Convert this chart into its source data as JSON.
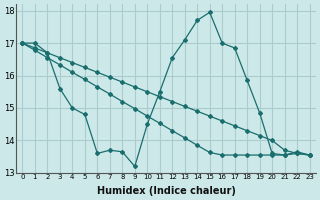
{
  "xlabel": "Humidex (Indice chaleur)",
  "ylabel": "",
  "bg_color": "#cce8e8",
  "grid_color": "#aacccc",
  "line_color": "#1a6e6e",
  "xlim": [
    -0.5,
    23.5
  ],
  "ylim": [
    13,
    18.2
  ],
  "yticks": [
    13,
    14,
    15,
    16,
    17,
    18
  ],
  "xticks": [
    0,
    1,
    2,
    3,
    4,
    5,
    6,
    7,
    8,
    9,
    10,
    11,
    12,
    13,
    14,
    15,
    16,
    17,
    18,
    19,
    20,
    21,
    22,
    23
  ],
  "line1_x": [
    0,
    1,
    2,
    3,
    4,
    5,
    6,
    7,
    8,
    9,
    10,
    11,
    12,
    13,
    14,
    15,
    16,
    17,
    18,
    19,
    20,
    21,
    22,
    23
  ],
  "line1_y": [
    17.0,
    17.0,
    16.7,
    15.6,
    15.0,
    14.8,
    13.6,
    13.7,
    13.65,
    13.2,
    14.5,
    15.5,
    16.55,
    17.1,
    17.7,
    17.95,
    17.0,
    16.85,
    15.85,
    14.85,
    13.6,
    13.55,
    13.65,
    13.55
  ],
  "line2_x": [
    0,
    1,
    2,
    3,
    4,
    5,
    6,
    7,
    8,
    9,
    10,
    11,
    12,
    13,
    14,
    15,
    16,
    17,
    18,
    19,
    20,
    21,
    22,
    23
  ],
  "line2_y": [
    17.0,
    16.85,
    16.7,
    16.55,
    16.4,
    16.25,
    16.1,
    15.95,
    15.8,
    15.65,
    15.5,
    15.35,
    15.2,
    15.05,
    14.9,
    14.75,
    14.6,
    14.45,
    14.3,
    14.15,
    14.0,
    13.7,
    13.6,
    13.55
  ],
  "line3_x": [
    0,
    1,
    2,
    3,
    4,
    5,
    6,
    7,
    8,
    9,
    10,
    11,
    12,
    13,
    14,
    15,
    16,
    17,
    18,
    19,
    20,
    21,
    22,
    23
  ],
  "line3_y": [
    17.0,
    16.78,
    16.55,
    16.33,
    16.1,
    15.88,
    15.65,
    15.43,
    15.2,
    14.98,
    14.75,
    14.53,
    14.3,
    14.08,
    13.85,
    13.63,
    13.55,
    13.55,
    13.55,
    13.55,
    13.55,
    13.55,
    13.6,
    13.55
  ]
}
